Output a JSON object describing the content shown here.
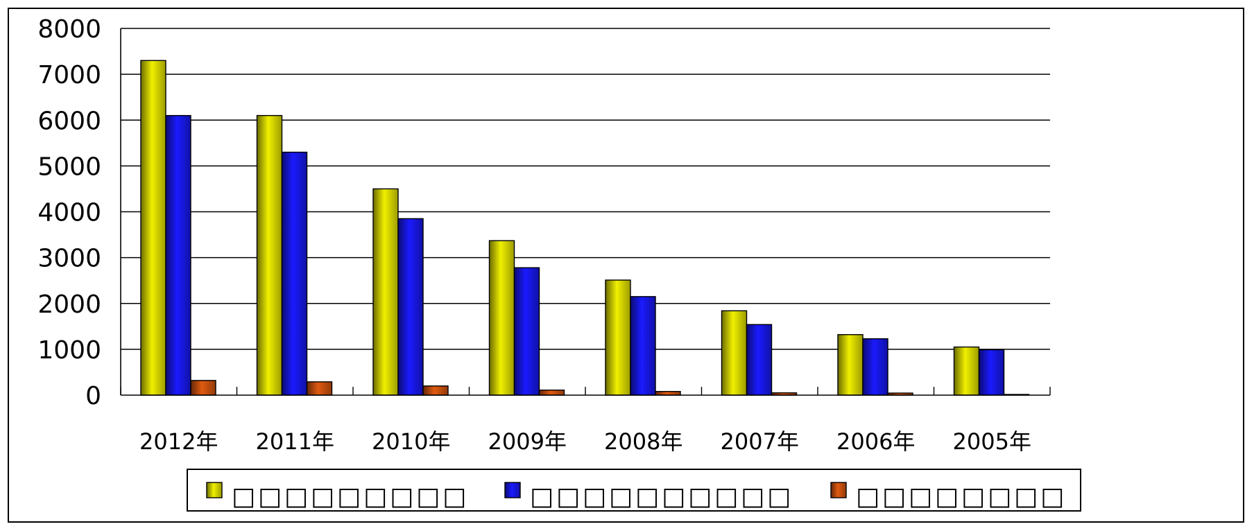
{
  "chart_data": {
    "type": "bar",
    "title": "",
    "xlabel": "",
    "ylabel": "",
    "categories": [
      "2012年",
      "2011年",
      "2010年",
      "2009年",
      "2008年",
      "2007年",
      "2006年",
      "2005年"
    ],
    "series": [
      {
        "name": "□□□□□□□□□",
        "color": "#f0f000",
        "values": [
          7300,
          6100,
          4500,
          3370,
          2510,
          1840,
          1320,
          1050
        ]
      },
      {
        "name": "□□□□□□□□□□",
        "color": "#1a1aff",
        "values": [
          6100,
          5300,
          3850,
          2780,
          2150,
          1540,
          1230,
          990
        ]
      },
      {
        "name": "□□□□□□□□",
        "color": "#e05a10",
        "values": [
          320,
          290,
          200,
          110,
          80,
          50,
          45,
          15
        ]
      }
    ],
    "ylim": [
      0,
      8000
    ],
    "yticks": [
      0,
      1000,
      2000,
      3000,
      4000,
      5000,
      6000,
      7000,
      8000
    ],
    "grid": true,
    "legend_position": "bottom"
  }
}
